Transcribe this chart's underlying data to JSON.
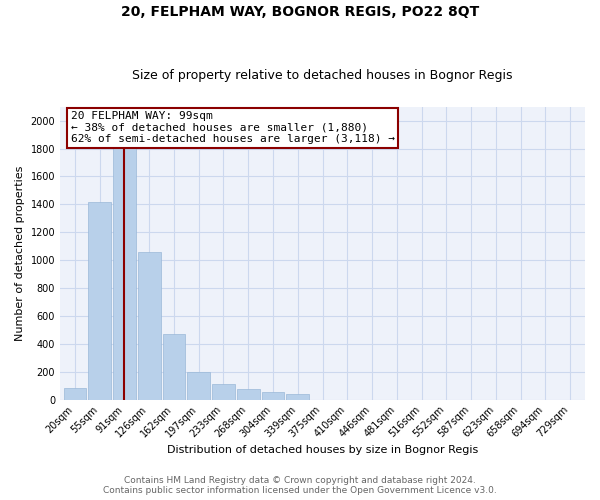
{
  "title": "20, FELPHAM WAY, BOGNOR REGIS, PO22 8QT",
  "subtitle": "Size of property relative to detached houses in Bognor Regis",
  "xlabel": "Distribution of detached houses by size in Bognor Regis",
  "ylabel": "Number of detached properties",
  "footnote1": "Contains HM Land Registry data © Crown copyright and database right 2024.",
  "footnote2": "Contains public sector information licensed under the Open Government Licence v3.0.",
  "annotation_title": "20 FELPHAM WAY: 99sqm",
  "annotation_line1": "← 38% of detached houses are smaller (1,880)",
  "annotation_line2": "62% of semi-detached houses are larger (3,118) →",
  "categories": [
    "20sqm",
    "55sqm",
    "91sqm",
    "126sqm",
    "162sqm",
    "197sqm",
    "233sqm",
    "268sqm",
    "304sqm",
    "339sqm",
    "375sqm",
    "410sqm",
    "446sqm",
    "481sqm",
    "516sqm",
    "552sqm",
    "587sqm",
    "623sqm",
    "658sqm",
    "694sqm",
    "729sqm"
  ],
  "values": [
    80,
    1420,
    1880,
    1060,
    470,
    200,
    115,
    75,
    55,
    40,
    0,
    0,
    0,
    0,
    0,
    0,
    0,
    0,
    0,
    0,
    0
  ],
  "bar_color": "#b8d0ea",
  "bar_edge_color": "#9ab8d8",
  "vline_color": "#8b0000",
  "box_color": "#8b0000",
  "vline_x": 2.0,
  "ylim": [
    0,
    2100
  ],
  "yticks": [
    0,
    200,
    400,
    600,
    800,
    1000,
    1200,
    1400,
    1600,
    1800,
    2000
  ],
  "grid_color": "#ccd8ee",
  "bg_color": "#eef2fa",
  "title_fontsize": 10,
  "subtitle_fontsize": 9,
  "label_fontsize": 8,
  "tick_fontsize": 7,
  "annotation_fontsize": 8,
  "footnote_fontsize": 6.5
}
